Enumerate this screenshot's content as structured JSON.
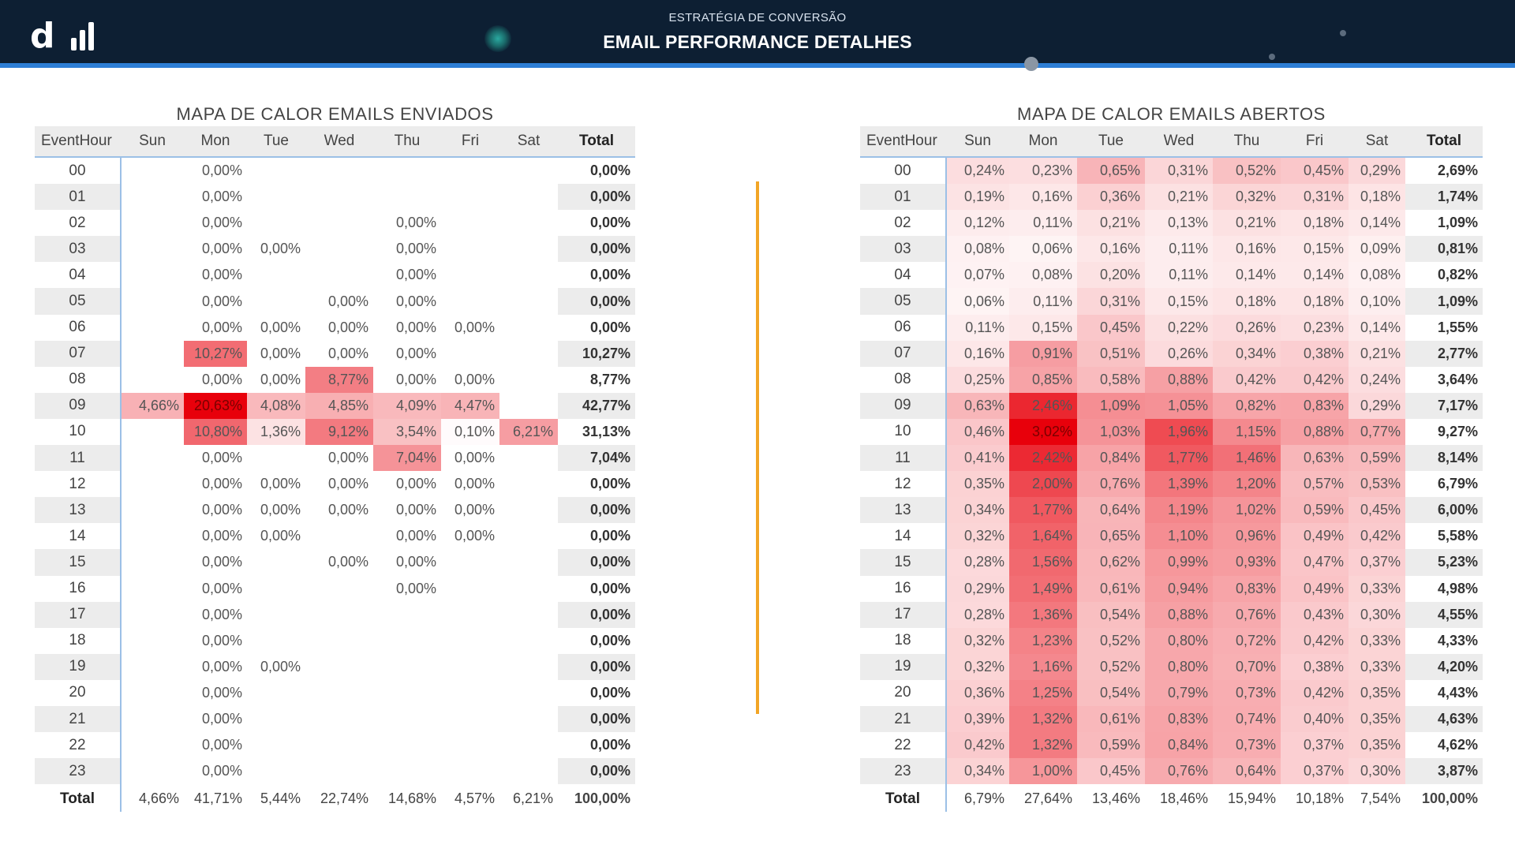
{
  "header": {
    "subtitle": "ESTRATÉGIA DE CONVERSÃO",
    "title": "EMAIL PERFORMANCE DETALHES",
    "logo_text": "d"
  },
  "colors": {
    "header_bg": "#0d1f33",
    "accent_blue": "#2e7fd6",
    "divider": "#f2a526",
    "heat_max": "#e8000b"
  },
  "sent": {
    "title": "MAPA DE CALOR EMAILS ENVIADOS",
    "columns": [
      "EventHour",
      "Sun",
      "Mon",
      "Tue",
      "Wed",
      "Thu",
      "Fri",
      "Sat",
      "Total"
    ],
    "rows": [
      [
        "00",
        "",
        "0,00%",
        "",
        "",
        "",
        "",
        "",
        "0,00%"
      ],
      [
        "01",
        "",
        "0,00%",
        "",
        "",
        "",
        "",
        "",
        "0,00%"
      ],
      [
        "02",
        "",
        "0,00%",
        "",
        "",
        "0,00%",
        "",
        "",
        "0,00%"
      ],
      [
        "03",
        "",
        "0,00%",
        "0,00%",
        "",
        "0,00%",
        "",
        "",
        "0,00%"
      ],
      [
        "04",
        "",
        "0,00%",
        "",
        "",
        "0,00%",
        "",
        "",
        "0,00%"
      ],
      [
        "05",
        "",
        "0,00%",
        "",
        "0,00%",
        "0,00%",
        "",
        "",
        "0,00%"
      ],
      [
        "06",
        "",
        "0,00%",
        "0,00%",
        "0,00%",
        "0,00%",
        "0,00%",
        "",
        "0,00%"
      ],
      [
        "07",
        "",
        "10,27%",
        "0,00%",
        "0,00%",
        "0,00%",
        "",
        "",
        "10,27%"
      ],
      [
        "08",
        "",
        "0,00%",
        "0,00%",
        "8,77%",
        "0,00%",
        "0,00%",
        "",
        "8,77%"
      ],
      [
        "09",
        "4,66%",
        "20,63%",
        "4,08%",
        "4,85%",
        "4,09%",
        "4,47%",
        "",
        "42,77%"
      ],
      [
        "10",
        "",
        "10,80%",
        "1,36%",
        "9,12%",
        "3,54%",
        "0,10%",
        "6,21%",
        "31,13%"
      ],
      [
        "11",
        "",
        "0,00%",
        "",
        "0,00%",
        "7,04%",
        "0,00%",
        "",
        "7,04%"
      ],
      [
        "12",
        "",
        "0,00%",
        "0,00%",
        "0,00%",
        "0,00%",
        "0,00%",
        "",
        "0,00%"
      ],
      [
        "13",
        "",
        "0,00%",
        "0,00%",
        "0,00%",
        "0,00%",
        "0,00%",
        "",
        "0,00%"
      ],
      [
        "14",
        "",
        "0,00%",
        "0,00%",
        "",
        "0,00%",
        "0,00%",
        "",
        "0,00%"
      ],
      [
        "15",
        "",
        "0,00%",
        "",
        "0,00%",
        "0,00%",
        "",
        "",
        "0,00%"
      ],
      [
        "16",
        "",
        "0,00%",
        "",
        "",
        "0,00%",
        "",
        "",
        "0,00%"
      ],
      [
        "17",
        "",
        "0,00%",
        "",
        "",
        "",
        "",
        "",
        "0,00%"
      ],
      [
        "18",
        "",
        "0,00%",
        "",
        "",
        "",
        "",
        "",
        "0,00%"
      ],
      [
        "19",
        "",
        "0,00%",
        "0,00%",
        "",
        "",
        "",
        "",
        "0,00%"
      ],
      [
        "20",
        "",
        "0,00%",
        "",
        "",
        "",
        "",
        "",
        "0,00%"
      ],
      [
        "21",
        "",
        "0,00%",
        "",
        "",
        "",
        "",
        "",
        "0,00%"
      ],
      [
        "22",
        "",
        "0,00%",
        "",
        "",
        "",
        "",
        "",
        "0,00%"
      ],
      [
        "23",
        "",
        "0,00%",
        "",
        "",
        "",
        "",
        "",
        "0,00%"
      ]
    ],
    "totals": [
      "Total",
      "4,66%",
      "41,71%",
      "5,44%",
      "22,74%",
      "14,68%",
      "4,57%",
      "6,21%",
      "100,00%"
    ]
  },
  "opened": {
    "title": "MAPA DE CALOR EMAILS ABERTOS",
    "columns": [
      "EventHour",
      "Sun",
      "Mon",
      "Tue",
      "Wed",
      "Thu",
      "Fri",
      "Sat",
      "Total"
    ],
    "rows": [
      [
        "00",
        "0,24%",
        "0,23%",
        "0,65%",
        "0,31%",
        "0,52%",
        "0,45%",
        "0,29%",
        "2,69%"
      ],
      [
        "01",
        "0,19%",
        "0,16%",
        "0,36%",
        "0,21%",
        "0,32%",
        "0,31%",
        "0,18%",
        "1,74%"
      ],
      [
        "02",
        "0,12%",
        "0,11%",
        "0,21%",
        "0,13%",
        "0,21%",
        "0,18%",
        "0,14%",
        "1,09%"
      ],
      [
        "03",
        "0,08%",
        "0,06%",
        "0,16%",
        "0,11%",
        "0,16%",
        "0,15%",
        "0,09%",
        "0,81%"
      ],
      [
        "04",
        "0,07%",
        "0,08%",
        "0,20%",
        "0,11%",
        "0,14%",
        "0,14%",
        "0,08%",
        "0,82%"
      ],
      [
        "05",
        "0,06%",
        "0,11%",
        "0,31%",
        "0,15%",
        "0,18%",
        "0,18%",
        "0,10%",
        "1,09%"
      ],
      [
        "06",
        "0,11%",
        "0,15%",
        "0,45%",
        "0,22%",
        "0,26%",
        "0,23%",
        "0,14%",
        "1,55%"
      ],
      [
        "07",
        "0,16%",
        "0,91%",
        "0,51%",
        "0,26%",
        "0,34%",
        "0,38%",
        "0,21%",
        "2,77%"
      ],
      [
        "08",
        "0,25%",
        "0,85%",
        "0,58%",
        "0,88%",
        "0,42%",
        "0,42%",
        "0,24%",
        "3,64%"
      ],
      [
        "09",
        "0,63%",
        "2,46%",
        "1,09%",
        "1,05%",
        "0,82%",
        "0,83%",
        "0,29%",
        "7,17%"
      ],
      [
        "10",
        "0,46%",
        "3,02%",
        "1,03%",
        "1,96%",
        "1,15%",
        "0,88%",
        "0,77%",
        "9,27%"
      ],
      [
        "11",
        "0,41%",
        "2,42%",
        "0,84%",
        "1,77%",
        "1,46%",
        "0,63%",
        "0,59%",
        "8,14%"
      ],
      [
        "12",
        "0,35%",
        "2,00%",
        "0,76%",
        "1,39%",
        "1,20%",
        "0,57%",
        "0,53%",
        "6,79%"
      ],
      [
        "13",
        "0,34%",
        "1,77%",
        "0,64%",
        "1,19%",
        "1,02%",
        "0,59%",
        "0,45%",
        "6,00%"
      ],
      [
        "14",
        "0,32%",
        "1,64%",
        "0,65%",
        "1,10%",
        "0,96%",
        "0,49%",
        "0,42%",
        "5,58%"
      ],
      [
        "15",
        "0,28%",
        "1,56%",
        "0,62%",
        "0,99%",
        "0,93%",
        "0,47%",
        "0,37%",
        "5,23%"
      ],
      [
        "16",
        "0,29%",
        "1,49%",
        "0,61%",
        "0,94%",
        "0,83%",
        "0,49%",
        "0,33%",
        "4,98%"
      ],
      [
        "17",
        "0,28%",
        "1,36%",
        "0,54%",
        "0,88%",
        "0,76%",
        "0,43%",
        "0,30%",
        "4,55%"
      ],
      [
        "18",
        "0,32%",
        "1,23%",
        "0,52%",
        "0,80%",
        "0,72%",
        "0,42%",
        "0,33%",
        "4,33%"
      ],
      [
        "19",
        "0,32%",
        "1,16%",
        "0,52%",
        "0,80%",
        "0,70%",
        "0,38%",
        "0,33%",
        "4,20%"
      ],
      [
        "20",
        "0,36%",
        "1,25%",
        "0,54%",
        "0,79%",
        "0,73%",
        "0,42%",
        "0,35%",
        "4,43%"
      ],
      [
        "21",
        "0,39%",
        "1,32%",
        "0,61%",
        "0,83%",
        "0,74%",
        "0,40%",
        "0,35%",
        "4,63%"
      ],
      [
        "22",
        "0,42%",
        "1,32%",
        "0,59%",
        "0,84%",
        "0,73%",
        "0,37%",
        "0,35%",
        "4,62%"
      ],
      [
        "23",
        "0,34%",
        "1,00%",
        "0,45%",
        "0,76%",
        "0,64%",
        "0,37%",
        "0,30%",
        "3,87%"
      ]
    ],
    "totals": [
      "Total",
      "6,79%",
      "27,64%",
      "13,46%",
      "18,46%",
      "15,94%",
      "10,18%",
      "7,54%",
      "100,00%"
    ]
  }
}
